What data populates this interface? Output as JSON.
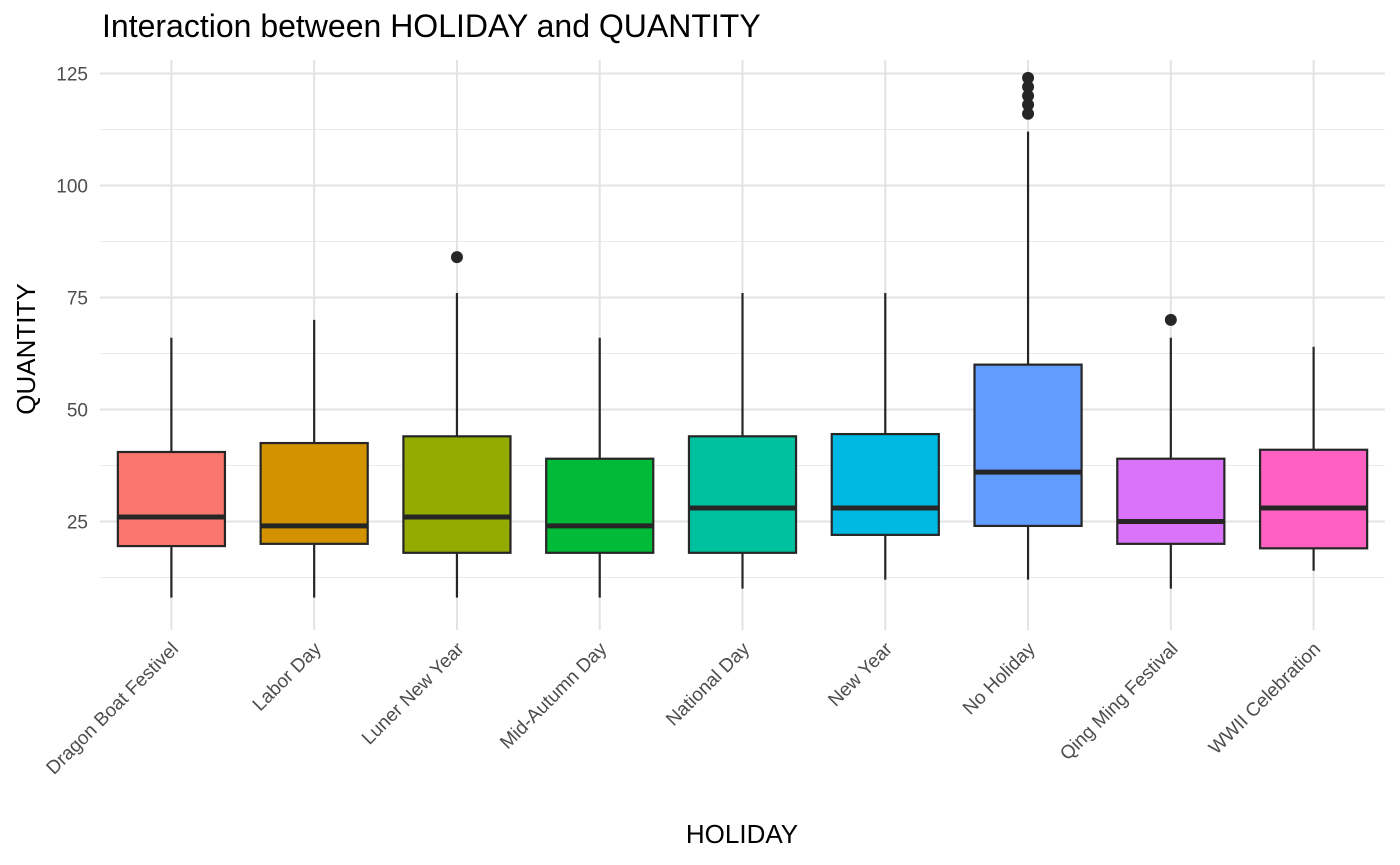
{
  "chart_data": {
    "type": "boxplot",
    "title": "Interaction between HOLIDAY and QUANTITY",
    "xlabel": "HOLIDAY",
    "ylabel": "QUANTITY",
    "ylim": [
      3,
      128
    ],
    "y_ticks": [
      25,
      50,
      75,
      100,
      125
    ],
    "grid": true,
    "legend": "none",
    "categories": [
      "Dragon Boat Festivel",
      "Labor Day",
      "Luner New Year",
      "Mid-Autumn Day",
      "National Day",
      "New Year",
      "No Holiday",
      "Qing Ming Festival",
      "WWII Celebration"
    ],
    "colors": [
      "#F8766D",
      "#D39200",
      "#93AA00",
      "#00BA38",
      "#00C19F",
      "#00B9E3",
      "#619CFF",
      "#DB72FB",
      "#FF61C3"
    ],
    "boxes": [
      {
        "min": 8,
        "q1": 19.5,
        "median": 26,
        "q3": 40.5,
        "max": 66,
        "outliers": []
      },
      {
        "min": 8,
        "q1": 20,
        "median": 24,
        "q3": 42.5,
        "max": 70,
        "outliers": []
      },
      {
        "min": 8,
        "q1": 18,
        "median": 26,
        "q3": 44,
        "max": 76,
        "outliers": [
          84
        ]
      },
      {
        "min": 8,
        "q1": 18,
        "median": 24,
        "q3": 39,
        "max": 66,
        "outliers": []
      },
      {
        "min": 10,
        "q1": 18,
        "median": 28,
        "q3": 44,
        "max": 76,
        "outliers": []
      },
      {
        "min": 12,
        "q1": 22,
        "median": 28,
        "q3": 44.5,
        "max": 76,
        "outliers": []
      },
      {
        "min": 12,
        "q1": 24,
        "median": 36,
        "q3": 60,
        "max": 112,
        "outliers": [
          116,
          118,
          120,
          122,
          124
        ]
      },
      {
        "min": 10,
        "q1": 20,
        "median": 25,
        "q3": 39,
        "max": 66,
        "outliers": [
          70
        ]
      },
      {
        "min": 14,
        "q1": 19,
        "median": 28,
        "q3": 41,
        "max": 64,
        "outliers": []
      }
    ]
  }
}
